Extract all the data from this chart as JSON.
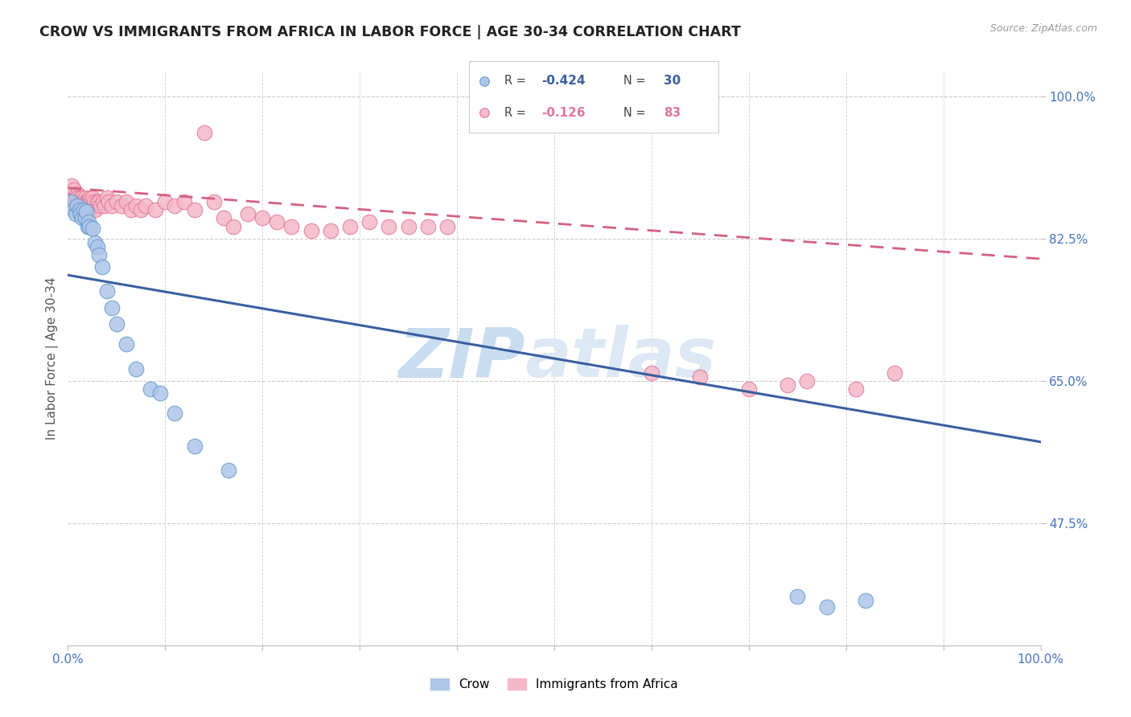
{
  "title": "CROW VS IMMIGRANTS FROM AFRICA IN LABOR FORCE | AGE 30-34 CORRELATION CHART",
  "source": "Source: ZipAtlas.com",
  "ylabel": "In Labor Force | Age 30-34",
  "watermark_top": "ZIP",
  "watermark_bot": "atlas",
  "crow_color": "#aec6e8",
  "crow_edge_color": "#6699cc",
  "africa_color": "#f5b8c8",
  "africa_edge_color": "#e07898",
  "crow_line_color": "#3a5fa0",
  "africa_line_color": "#d46080",
  "background_color": "#ffffff",
  "grid_color": "#cccccc",
  "axis_label_color": "#4472c4",
  "title_color": "#222222",
  "watermark_color": "#c8ddf0",
  "xmin": 0.0,
  "xmax": 1.0,
  "ymin": 0.325,
  "ymax": 1.03,
  "crow_x": [
    0.003,
    0.006,
    0.008,
    0.01,
    0.012,
    0.013,
    0.015,
    0.016,
    0.018,
    0.019,
    0.02,
    0.021,
    0.022,
    0.025,
    0.028,
    0.03,
    0.032,
    0.035,
    0.04,
    0.045,
    0.05,
    0.06,
    0.07,
    0.085,
    0.095,
    0.11,
    0.13,
    0.165,
    0.75,
    0.78,
    0.82
  ],
  "crow_y": [
    0.87,
    0.86,
    0.855,
    0.865,
    0.86,
    0.855,
    0.85,
    0.86,
    0.85,
    0.858,
    0.84,
    0.845,
    0.84,
    0.838,
    0.82,
    0.815,
    0.805,
    0.79,
    0.76,
    0.74,
    0.72,
    0.695,
    0.665,
    0.64,
    0.635,
    0.61,
    0.57,
    0.54,
    0.385,
    0.372,
    0.38
  ],
  "africa_x": [
    0.002,
    0.003,
    0.004,
    0.005,
    0.006,
    0.006,
    0.007,
    0.007,
    0.008,
    0.008,
    0.009,
    0.009,
    0.01,
    0.01,
    0.011,
    0.011,
    0.012,
    0.012,
    0.013,
    0.013,
    0.014,
    0.014,
    0.015,
    0.015,
    0.016,
    0.016,
    0.017,
    0.018,
    0.018,
    0.019,
    0.02,
    0.02,
    0.021,
    0.022,
    0.023,
    0.024,
    0.025,
    0.026,
    0.027,
    0.028,
    0.03,
    0.032,
    0.034,
    0.036,
    0.038,
    0.04,
    0.042,
    0.045,
    0.05,
    0.055,
    0.06,
    0.065,
    0.07,
    0.075,
    0.08,
    0.09,
    0.1,
    0.11,
    0.12,
    0.13,
    0.14,
    0.15,
    0.16,
    0.17,
    0.185,
    0.2,
    0.215,
    0.23,
    0.25,
    0.27,
    0.29,
    0.31,
    0.33,
    0.35,
    0.37,
    0.39,
    0.6,
    0.65,
    0.7,
    0.74,
    0.76,
    0.81,
    0.85
  ],
  "africa_y": [
    0.88,
    0.875,
    0.89,
    0.88,
    0.885,
    0.87,
    0.875,
    0.87,
    0.875,
    0.87,
    0.87,
    0.865,
    0.88,
    0.875,
    0.87,
    0.87,
    0.875,
    0.865,
    0.87,
    0.86,
    0.87,
    0.865,
    0.875,
    0.87,
    0.86,
    0.865,
    0.87,
    0.875,
    0.86,
    0.87,
    0.87,
    0.865,
    0.87,
    0.86,
    0.875,
    0.87,
    0.875,
    0.865,
    0.87,
    0.86,
    0.87,
    0.87,
    0.865,
    0.87,
    0.865,
    0.875,
    0.87,
    0.865,
    0.87,
    0.865,
    0.87,
    0.86,
    0.865,
    0.86,
    0.865,
    0.86,
    0.87,
    0.865,
    0.87,
    0.86,
    0.955,
    0.87,
    0.85,
    0.84,
    0.855,
    0.85,
    0.845,
    0.84,
    0.835,
    0.835,
    0.84,
    0.845,
    0.84,
    0.84,
    0.84,
    0.84,
    0.66,
    0.655,
    0.64,
    0.645,
    0.65,
    0.64,
    0.66
  ],
  "crow_trendline_x": [
    0.0,
    1.0
  ],
  "crow_trendline_y": [
    0.78,
    0.575
  ],
  "africa_trendline_x": [
    0.0,
    1.0
  ],
  "africa_trendline_y": [
    0.887,
    0.8
  ]
}
